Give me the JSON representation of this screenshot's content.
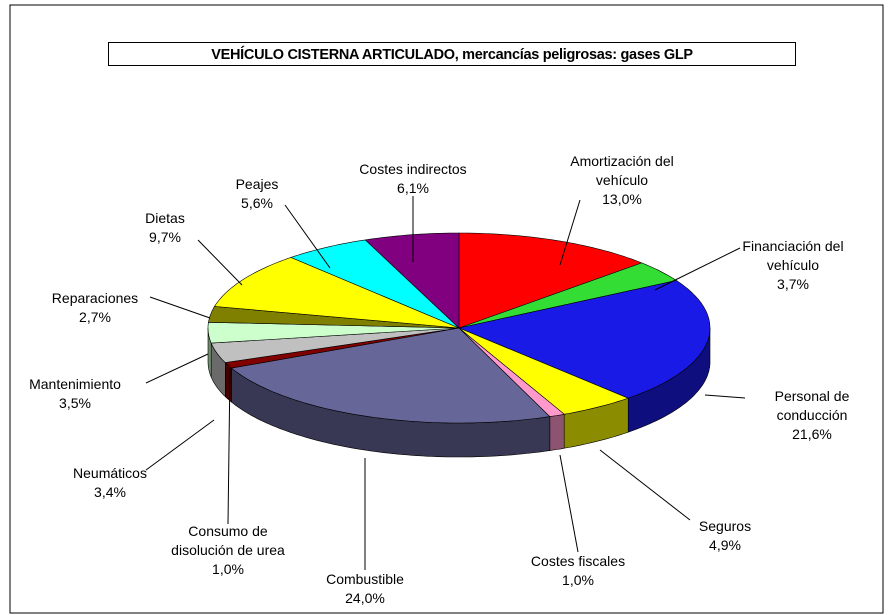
{
  "chart_data": {
    "type": "pie3d",
    "title": "VEHÍCULO CISTERNA ARTICULADO, mercancías peligrosas: gases GLP",
    "categories": [
      "Amortización del vehículo",
      "Financiación del vehículo",
      "Personal de conducción",
      "Seguros",
      "Costes fiscales",
      "Combustible",
      "Consumo de disolución de urea",
      "Neumáticos",
      "Mantenimiento",
      "Reparaciones",
      "Dietas",
      "Peajes",
      "Costes indirectos"
    ],
    "values": [
      13.0,
      3.7,
      21.6,
      4.9,
      1.0,
      24.0,
      1.0,
      3.4,
      3.5,
      2.7,
      9.7,
      5.6,
      6.1
    ],
    "value_labels": [
      "13,0%",
      "3,7%",
      "21,6%",
      "4,9%",
      "1,0%",
      "24,0%",
      "1,0%",
      "3,4%",
      "3,5%",
      "2,7%",
      "9,7%",
      "5,6%",
      "6,1%"
    ],
    "colors": [
      "#ff0000",
      "#33dd33",
      "#1a1ae6",
      "#ffff00",
      "#ff99cc",
      "#666699",
      "#800000",
      "#c0c0c0",
      "#ccffcc",
      "#808000",
      "#ffff00",
      "#00ffff",
      "#800080"
    ]
  }
}
